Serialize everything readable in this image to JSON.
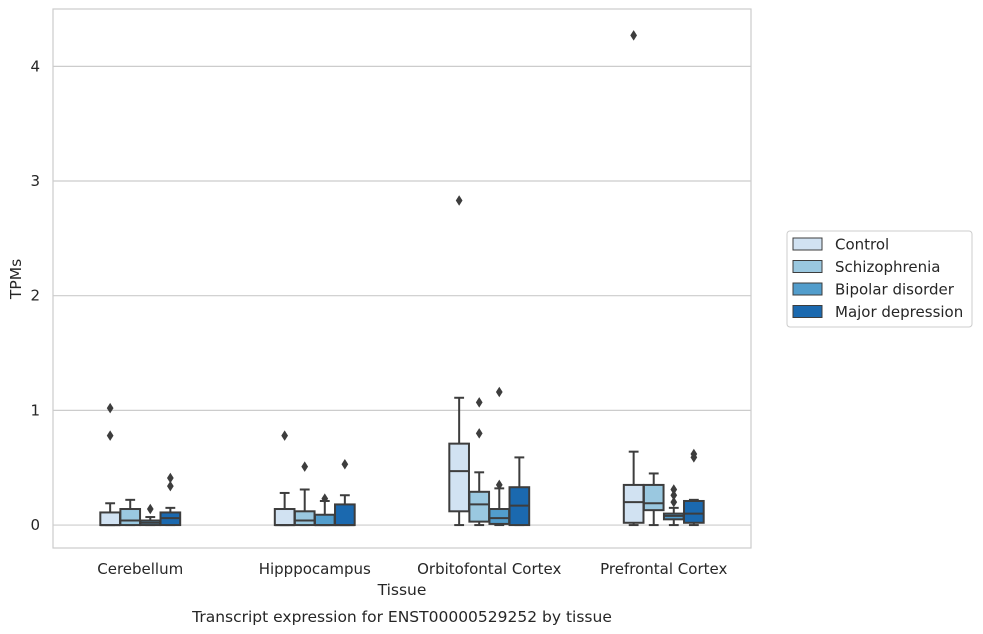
{
  "chart_data": {
    "type": "box",
    "title": "",
    "caption": "Transcript expression for ENST00000529252 by tissue",
    "xlabel": "Tissue",
    "ylabel": "TPMs",
    "ylim": [
      -0.2,
      4.5
    ],
    "yticks": [
      0,
      1,
      2,
      3,
      4
    ],
    "grid": "horizontal",
    "legend_position": "right",
    "categories": [
      "Cerebellum",
      "Hipppocampus",
      "Orbitofontal Cortex",
      "Prefrontal Cortex"
    ],
    "series": [
      {
        "name": "Control",
        "color": "#d1e2f2",
        "boxes": [
          {
            "whisker_low": 0,
            "q1": 0,
            "median": 0,
            "q3": 0.11,
            "whisker_high": 0.19,
            "outliers": [
              0.78,
              1.02
            ]
          },
          {
            "whisker_low": 0,
            "q1": 0,
            "median": 0,
            "q3": 0.14,
            "whisker_high": 0.28,
            "outliers": [
              0.78
            ]
          },
          {
            "whisker_low": 0,
            "q1": 0.12,
            "median": 0.47,
            "q3": 0.71,
            "whisker_high": 1.11,
            "outliers": [
              2.83
            ]
          },
          {
            "whisker_low": 0,
            "q1": 0.02,
            "median": 0.2,
            "q3": 0.35,
            "whisker_high": 0.64,
            "outliers": [
              4.27
            ]
          }
        ]
      },
      {
        "name": "Schizophrenia",
        "color": "#9ac8e0",
        "boxes": [
          {
            "whisker_low": 0,
            "q1": 0,
            "median": 0.04,
            "q3": 0.14,
            "whisker_high": 0.22,
            "outliers": []
          },
          {
            "whisker_low": 0,
            "q1": 0,
            "median": 0.04,
            "q3": 0.12,
            "whisker_high": 0.31,
            "outliers": [
              0.51
            ]
          },
          {
            "whisker_low": 0,
            "q1": 0.03,
            "median": 0.18,
            "q3": 0.29,
            "whisker_high": 0.46,
            "outliers": [
              0.8,
              1.07
            ]
          },
          {
            "whisker_low": 0,
            "q1": 0.13,
            "median": 0.19,
            "q3": 0.35,
            "whisker_high": 0.45,
            "outliers": []
          }
        ]
      },
      {
        "name": "Bipolar disorder",
        "color": "#529dcc",
        "boxes": [
          {
            "whisker_low": 0,
            "q1": 0,
            "median": 0.02,
            "q3": 0.04,
            "whisker_high": 0.07,
            "outliers": [
              0.14
            ]
          },
          {
            "whisker_low": 0,
            "q1": 0,
            "median": 0,
            "q3": 0.09,
            "whisker_high": 0.21,
            "outliers": [
              0.23
            ]
          },
          {
            "whisker_low": 0,
            "q1": 0.01,
            "median": 0.06,
            "q3": 0.14,
            "whisker_high": 0.32,
            "outliers": [
              0.35,
              1.16
            ]
          },
          {
            "whisker_low": 0,
            "q1": 0.05,
            "median": 0.08,
            "q3": 0.1,
            "whisker_high": 0.15,
            "outliers": [
              0.2,
              0.26,
              0.31
            ]
          }
        ]
      },
      {
        "name": "Major depression",
        "color": "#1b69af",
        "boxes": [
          {
            "whisker_low": 0,
            "q1": 0,
            "median": 0.06,
            "q3": 0.11,
            "whisker_high": 0.15,
            "outliers": [
              0.34,
              0.41
            ]
          },
          {
            "whisker_low": 0,
            "q1": 0,
            "median": 0,
            "q3": 0.18,
            "whisker_high": 0.26,
            "outliers": [
              0.53
            ]
          },
          {
            "whisker_low": 0,
            "q1": 0,
            "median": 0.17,
            "q3": 0.33,
            "whisker_high": 0.59,
            "outliers": []
          },
          {
            "whisker_low": 0,
            "q1": 0.02,
            "median": 0.1,
            "q3": 0.21,
            "whisker_high": 0.22,
            "outliers": [
              0.59,
              0.62
            ]
          }
        ]
      }
    ]
  }
}
